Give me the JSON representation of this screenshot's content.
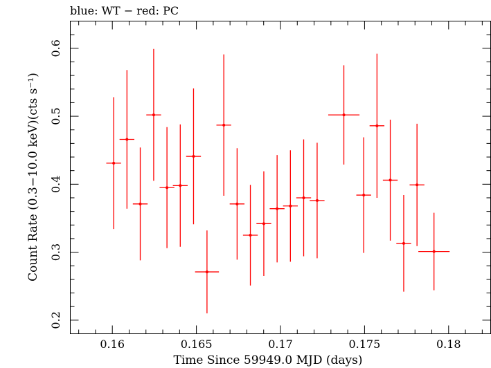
{
  "chart_data": {
    "type": "scatter",
    "title": "blue: WT − red: PC",
    "xlabel": "Time Since 59949.0 MJD (days)",
    "ylabel": "Count Rate (0.3−10.0 keV)(cts s⁻¹)",
    "xlim": [
      0.1575,
      0.1825
    ],
    "ylim": [
      0.18,
      0.64
    ],
    "xticks": [
      0.16,
      0.165,
      0.17,
      0.175,
      0.18
    ],
    "xtick_labels": [
      "0.16",
      "0.165",
      "0.17",
      "0.175",
      "0.18"
    ],
    "yticks": [
      0.2,
      0.3,
      0.4,
      0.5,
      0.6
    ],
    "ytick_labels": [
      "0.2",
      "0.3",
      "0.4",
      "0.5",
      "0.6"
    ],
    "grid": false,
    "legend": "none",
    "series": [
      {
        "color": "#ff0000",
        "points": [
          {
            "x": 0.16008,
            "xerr": 0.00044,
            "y": 0.431,
            "yerr": 0.097
          },
          {
            "x": 0.16087,
            "xerr": 0.00044,
            "y": 0.466,
            "yerr": 0.102
          },
          {
            "x": 0.16166,
            "xerr": 0.00044,
            "y": 0.371,
            "yerr": 0.083
          },
          {
            "x": 0.16246,
            "xerr": 0.00044,
            "y": 0.502,
            "yerr": 0.097
          },
          {
            "x": 0.16325,
            "xerr": 0.00044,
            "y": 0.395,
            "yerr": 0.089
          },
          {
            "x": 0.16404,
            "xerr": 0.00044,
            "y": 0.398,
            "yerr": 0.09
          },
          {
            "x": 0.16483,
            "xerr": 0.00044,
            "y": 0.441,
            "yerr": 0.1
          },
          {
            "x": 0.16563,
            "xerr": 0.00071,
            "y": 0.271,
            "yerr": 0.061
          },
          {
            "x": 0.16663,
            "xerr": 0.00044,
            "y": 0.487,
            "yerr": 0.104
          },
          {
            "x": 0.16742,
            "xerr": 0.00044,
            "y": 0.371,
            "yerr": 0.082
          },
          {
            "x": 0.16821,
            "xerr": 0.00044,
            "y": 0.325,
            "yerr": 0.074
          },
          {
            "x": 0.16901,
            "xerr": 0.00044,
            "y": 0.342,
            "yerr": 0.077
          },
          {
            "x": 0.1698,
            "xerr": 0.00044,
            "y": 0.364,
            "yerr": 0.079
          },
          {
            "x": 0.17059,
            "xerr": 0.00044,
            "y": 0.368,
            "yerr": 0.082
          },
          {
            "x": 0.17138,
            "xerr": 0.00044,
            "y": 0.38,
            "yerr": 0.086
          },
          {
            "x": 0.17218,
            "xerr": 0.00044,
            "y": 0.376,
            "yerr": 0.085
          },
          {
            "x": 0.17377,
            "xerr": 0.00093,
            "y": 0.502,
            "yerr": 0.073
          },
          {
            "x": 0.17495,
            "xerr": 0.00044,
            "y": 0.384,
            "yerr": 0.085
          },
          {
            "x": 0.17574,
            "xerr": 0.00044,
            "y": 0.486,
            "yerr": 0.106
          },
          {
            "x": 0.17653,
            "xerr": 0.00044,
            "y": 0.406,
            "yerr": 0.089
          },
          {
            "x": 0.17733,
            "xerr": 0.00044,
            "y": 0.313,
            "yerr": 0.071
          },
          {
            "x": 0.17812,
            "xerr": 0.00044,
            "y": 0.399,
            "yerr": 0.09
          },
          {
            "x": 0.17913,
            "xerr": 0.00093,
            "y": 0.301,
            "yerr": 0.057
          }
        ]
      }
    ]
  }
}
